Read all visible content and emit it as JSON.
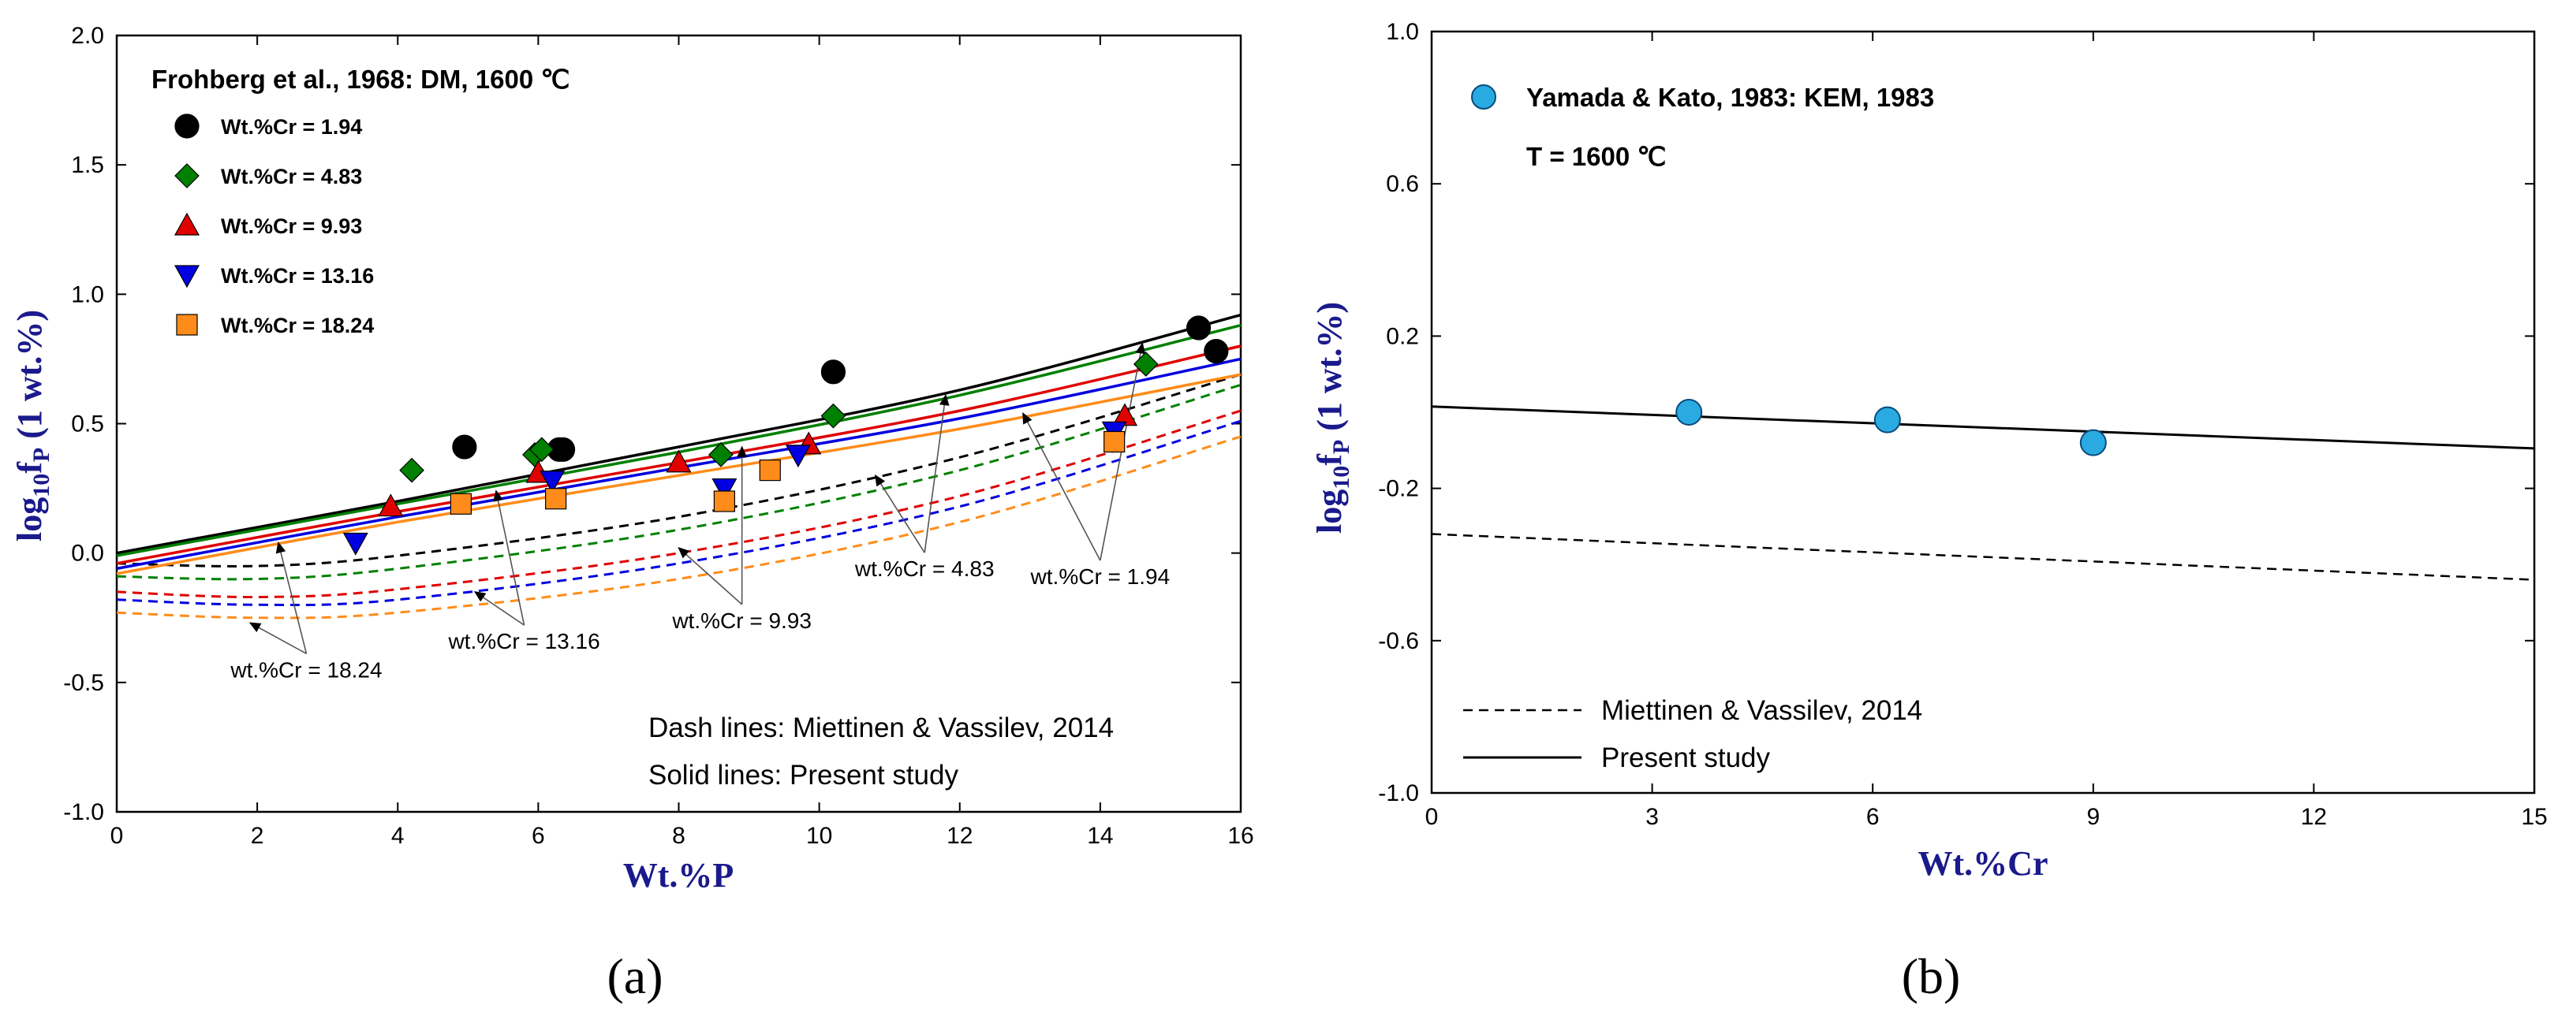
{
  "chart_data": [
    {
      "type": "scatter",
      "panel_label": "(a)",
      "title": "",
      "xlabel": "Wt.%P",
      "ylabel": {
        "main": "log",
        "sub1": "10",
        "mid": "f",
        "sub2": "P",
        "tail": " (1 wt.%)"
      },
      "xlim": [
        0,
        16
      ],
      "ylim": [
        -1.0,
        2.0
      ],
      "xticks": [
        "0",
        "2",
        "4",
        "6",
        "8",
        "10",
        "12",
        "14",
        "16"
      ],
      "yticks": [
        "-1.0",
        "-0.5",
        "0.0",
        "0.5",
        "1.0",
        "1.5",
        "2.0"
      ],
      "legend_title": "Frohberg et al., 1968: DM, 1600 ℃",
      "notes": [
        "Dash lines: Miettinen & Vassilev, 2014",
        "Solid lines: Present study"
      ],
      "series": [
        {
          "name": "Wt.%Cr = 1.94",
          "marker": "circle",
          "color": "#000000",
          "points": [
            [
              4.95,
              0.41
            ],
            [
              6.3,
              0.4
            ],
            [
              6.35,
              0.4
            ],
            [
              10.2,
              0.7
            ],
            [
              15.4,
              0.87
            ],
            [
              15.65,
              0.78
            ]
          ],
          "present_study_curve": [
            [
              0,
              0.0
            ],
            [
              4,
              0.2
            ],
            [
              8,
              0.41
            ],
            [
              12,
              0.63
            ],
            [
              16,
              0.92
            ]
          ],
          "miettinen_curve": [
            [
              0,
              -0.04
            ],
            [
              2,
              -0.05
            ],
            [
              4,
              -0.01
            ],
            [
              8,
              0.14
            ],
            [
              12,
              0.37
            ],
            [
              16,
              0.69
            ]
          ]
        },
        {
          "name": "Wt.%Cr = 4.83",
          "marker": "diamond",
          "color": "#008000",
          "points": [
            [
              4.2,
              0.32
            ],
            [
              5.95,
              0.38
            ],
            [
              6.05,
              0.4
            ],
            [
              8.6,
              0.38
            ],
            [
              10.2,
              0.53
            ],
            [
              14.65,
              0.73
            ]
          ],
          "present_study_curve": [
            [
              0,
              -0.01
            ],
            [
              4,
              0.19
            ],
            [
              8,
              0.39
            ],
            [
              12,
              0.61
            ],
            [
              16,
              0.88
            ]
          ],
          "miettinen_curve": [
            [
              0,
              -0.09
            ],
            [
              2,
              -0.1
            ],
            [
              4,
              -0.06
            ],
            [
              8,
              0.09
            ],
            [
              12,
              0.32
            ],
            [
              16,
              0.65
            ]
          ]
        },
        {
          "name": "Wt.%Cr = 9.93",
          "marker": "triangle-up",
          "color": "#e00000",
          "points": [
            [
              3.9,
              0.18
            ],
            [
              6.0,
              0.31
            ],
            [
              8.0,
              0.35
            ],
            [
              9.85,
              0.42
            ],
            [
              14.35,
              0.53
            ]
          ],
          "present_study_curve": [
            [
              0,
              -0.04
            ],
            [
              4,
              0.16
            ],
            [
              8,
              0.35
            ],
            [
              12,
              0.55
            ],
            [
              16,
              0.8
            ]
          ],
          "miettinen_curve": [
            [
              0,
              -0.15
            ],
            [
              2,
              -0.17
            ],
            [
              4,
              -0.14
            ],
            [
              8,
              0.0
            ],
            [
              12,
              0.22
            ],
            [
              16,
              0.55
            ]
          ]
        },
        {
          "name": "Wt.%Cr = 13.16",
          "marker": "triangle-down",
          "color": "#0000e0",
          "points": [
            [
              3.4,
              0.04
            ],
            [
              6.2,
              0.28
            ],
            [
              8.65,
              0.25
            ],
            [
              9.7,
              0.38
            ],
            [
              14.2,
              0.47
            ]
          ],
          "present_study_curve": [
            [
              0,
              -0.06
            ],
            [
              4,
              0.14
            ],
            [
              8,
              0.33
            ],
            [
              12,
              0.52
            ],
            [
              16,
              0.75
            ]
          ],
          "miettinen_curve": [
            [
              0,
              -0.18
            ],
            [
              2,
              -0.2
            ],
            [
              4,
              -0.18
            ],
            [
              8,
              -0.04
            ],
            [
              12,
              0.18
            ],
            [
              16,
              0.51
            ]
          ]
        },
        {
          "name": "Wt.%Cr = 18.24",
          "marker": "square",
          "color": "#ff8c1a",
          "points": [
            [
              4.9,
              0.19
            ],
            [
              6.25,
              0.21
            ],
            [
              8.65,
              0.2
            ],
            [
              9.3,
              0.32
            ],
            [
              14.2,
              0.43
            ]
          ],
          "present_study_curve": [
            [
              0,
              -0.08
            ],
            [
              4,
              0.12
            ],
            [
              8,
              0.3
            ],
            [
              12,
              0.48
            ],
            [
              16,
              0.69
            ]
          ],
          "miettinen_curve": [
            [
              0,
              -0.23
            ],
            [
              2,
              -0.25
            ],
            [
              4,
              -0.23
            ],
            [
              8,
              -0.1
            ],
            [
              12,
              0.12
            ],
            [
              16,
              0.45
            ]
          ]
        }
      ],
      "annotations": [
        {
          "text": "wt.%Cr = 1.94",
          "label_at": [
            14.0,
            -0.12
          ],
          "targets": [
            [
              14.6,
              0.81
            ],
            [
              12.9,
              0.54
            ]
          ]
        },
        {
          "text": "wt.%Cr = 4.83",
          "label_at": [
            11.5,
            -0.09
          ],
          "targets": [
            [
              11.8,
              0.61
            ],
            [
              10.8,
              0.3
            ]
          ]
        },
        {
          "text": "wt.%Cr = 9.93",
          "label_at": [
            8.9,
            -0.29
          ],
          "targets": [
            [
              8.9,
              0.41
            ],
            [
              8.0,
              0.02
            ]
          ]
        },
        {
          "text": "wt.%Cr = 13.16",
          "label_at": [
            5.8,
            -0.37
          ],
          "targets": [
            [
              5.4,
              0.24
            ],
            [
              5.1,
              -0.15
            ]
          ]
        },
        {
          "text": "wt.%Cr = 18.24",
          "label_at": [
            2.7,
            -0.48
          ],
          "targets": [
            [
              2.3,
              0.04
            ],
            [
              1.9,
              -0.27
            ]
          ]
        }
      ]
    },
    {
      "type": "scatter",
      "panel_label": "(b)",
      "title": "",
      "xlabel": "Wt.%Cr",
      "ylabel": {
        "main": "log",
        "sub1": "10",
        "mid": "f",
        "sub2": "P",
        "tail": " (1 wt.%)"
      },
      "xlim": [
        0,
        15
      ],
      "ylim": [
        -1.0,
        1.0
      ],
      "xticks": [
        "0",
        "3",
        "6",
        "9",
        "12",
        "15"
      ],
      "yticks": [
        "-1.0",
        "-0.6",
        "-0.2",
        "0.2",
        "0.6",
        "1.0"
      ],
      "legend_title": "Yamada & Kato, 1983: KEM, 1983",
      "legend_subtitle": "T = 1600 ℃",
      "points": [
        [
          3.5,
          0.0
        ],
        [
          6.2,
          -0.02
        ],
        [
          9.0,
          -0.08
        ]
      ],
      "point_color": "#29abe2",
      "lines": [
        {
          "name": "Miettinen & Vassilev, 2014",
          "style": "dashed",
          "points": [
            [
              0,
              -0.32
            ],
            [
              15,
              -0.44
            ]
          ]
        },
        {
          "name": "Present study",
          "style": "solid",
          "points": [
            [
              0,
              0.015
            ],
            [
              15,
              -0.095
            ]
          ]
        }
      ]
    }
  ]
}
